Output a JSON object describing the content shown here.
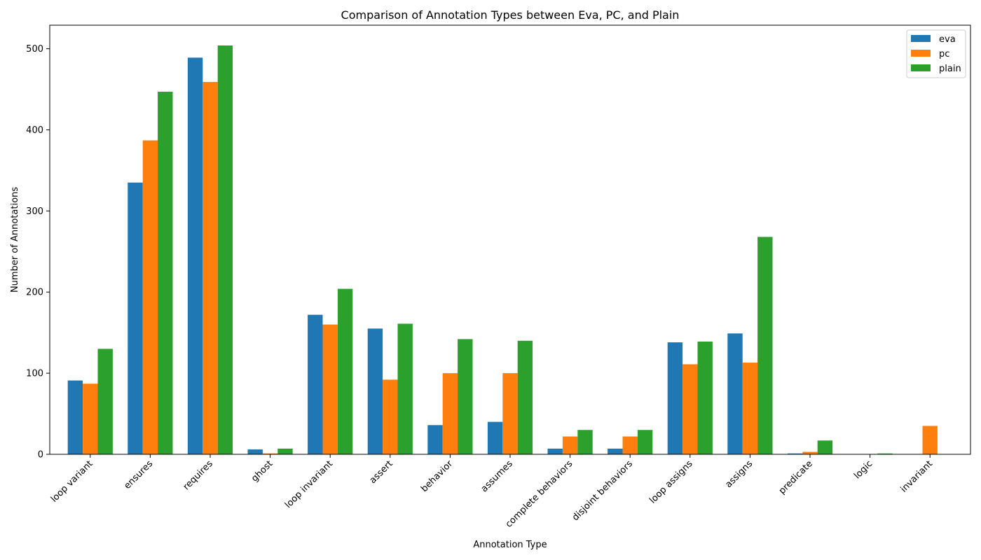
{
  "chart_data": {
    "type": "bar",
    "title": "Comparison of Annotation Types between Eva, PC, and Plain",
    "xlabel": "Annotation Type",
    "ylabel": "Number of Annotations",
    "categories": [
      "loop variant",
      "ensures",
      "requires",
      "ghost",
      "loop invariant",
      "assert",
      "behavior",
      "assumes",
      "complete behaviors",
      "disjoint behaviors",
      "loop assigns",
      "assigns",
      "predicate",
      "logic",
      "invariant"
    ],
    "series": [
      {
        "name": "eva",
        "color": "#1f77b4",
        "values": [
          91,
          335,
          489,
          6,
          172,
          155,
          36,
          40,
          7,
          7,
          138,
          149,
          1,
          0,
          0
        ]
      },
      {
        "name": "pc",
        "color": "#ff7f0e",
        "values": [
          87,
          387,
          459,
          1,
          160,
          92,
          100,
          100,
          22,
          22,
          111,
          113,
          3,
          0,
          35
        ]
      },
      {
        "name": "plain",
        "color": "#2ca02c",
        "values": [
          130,
          447,
          504,
          7,
          204,
          161,
          142,
          140,
          30,
          30,
          139,
          268,
          17,
          1,
          0
        ]
      }
    ],
    "ylim": [
      0,
      529
    ],
    "yticks": [
      0,
      100,
      200,
      300,
      400,
      500
    ],
    "grid": false,
    "legend_position": "top-right"
  }
}
